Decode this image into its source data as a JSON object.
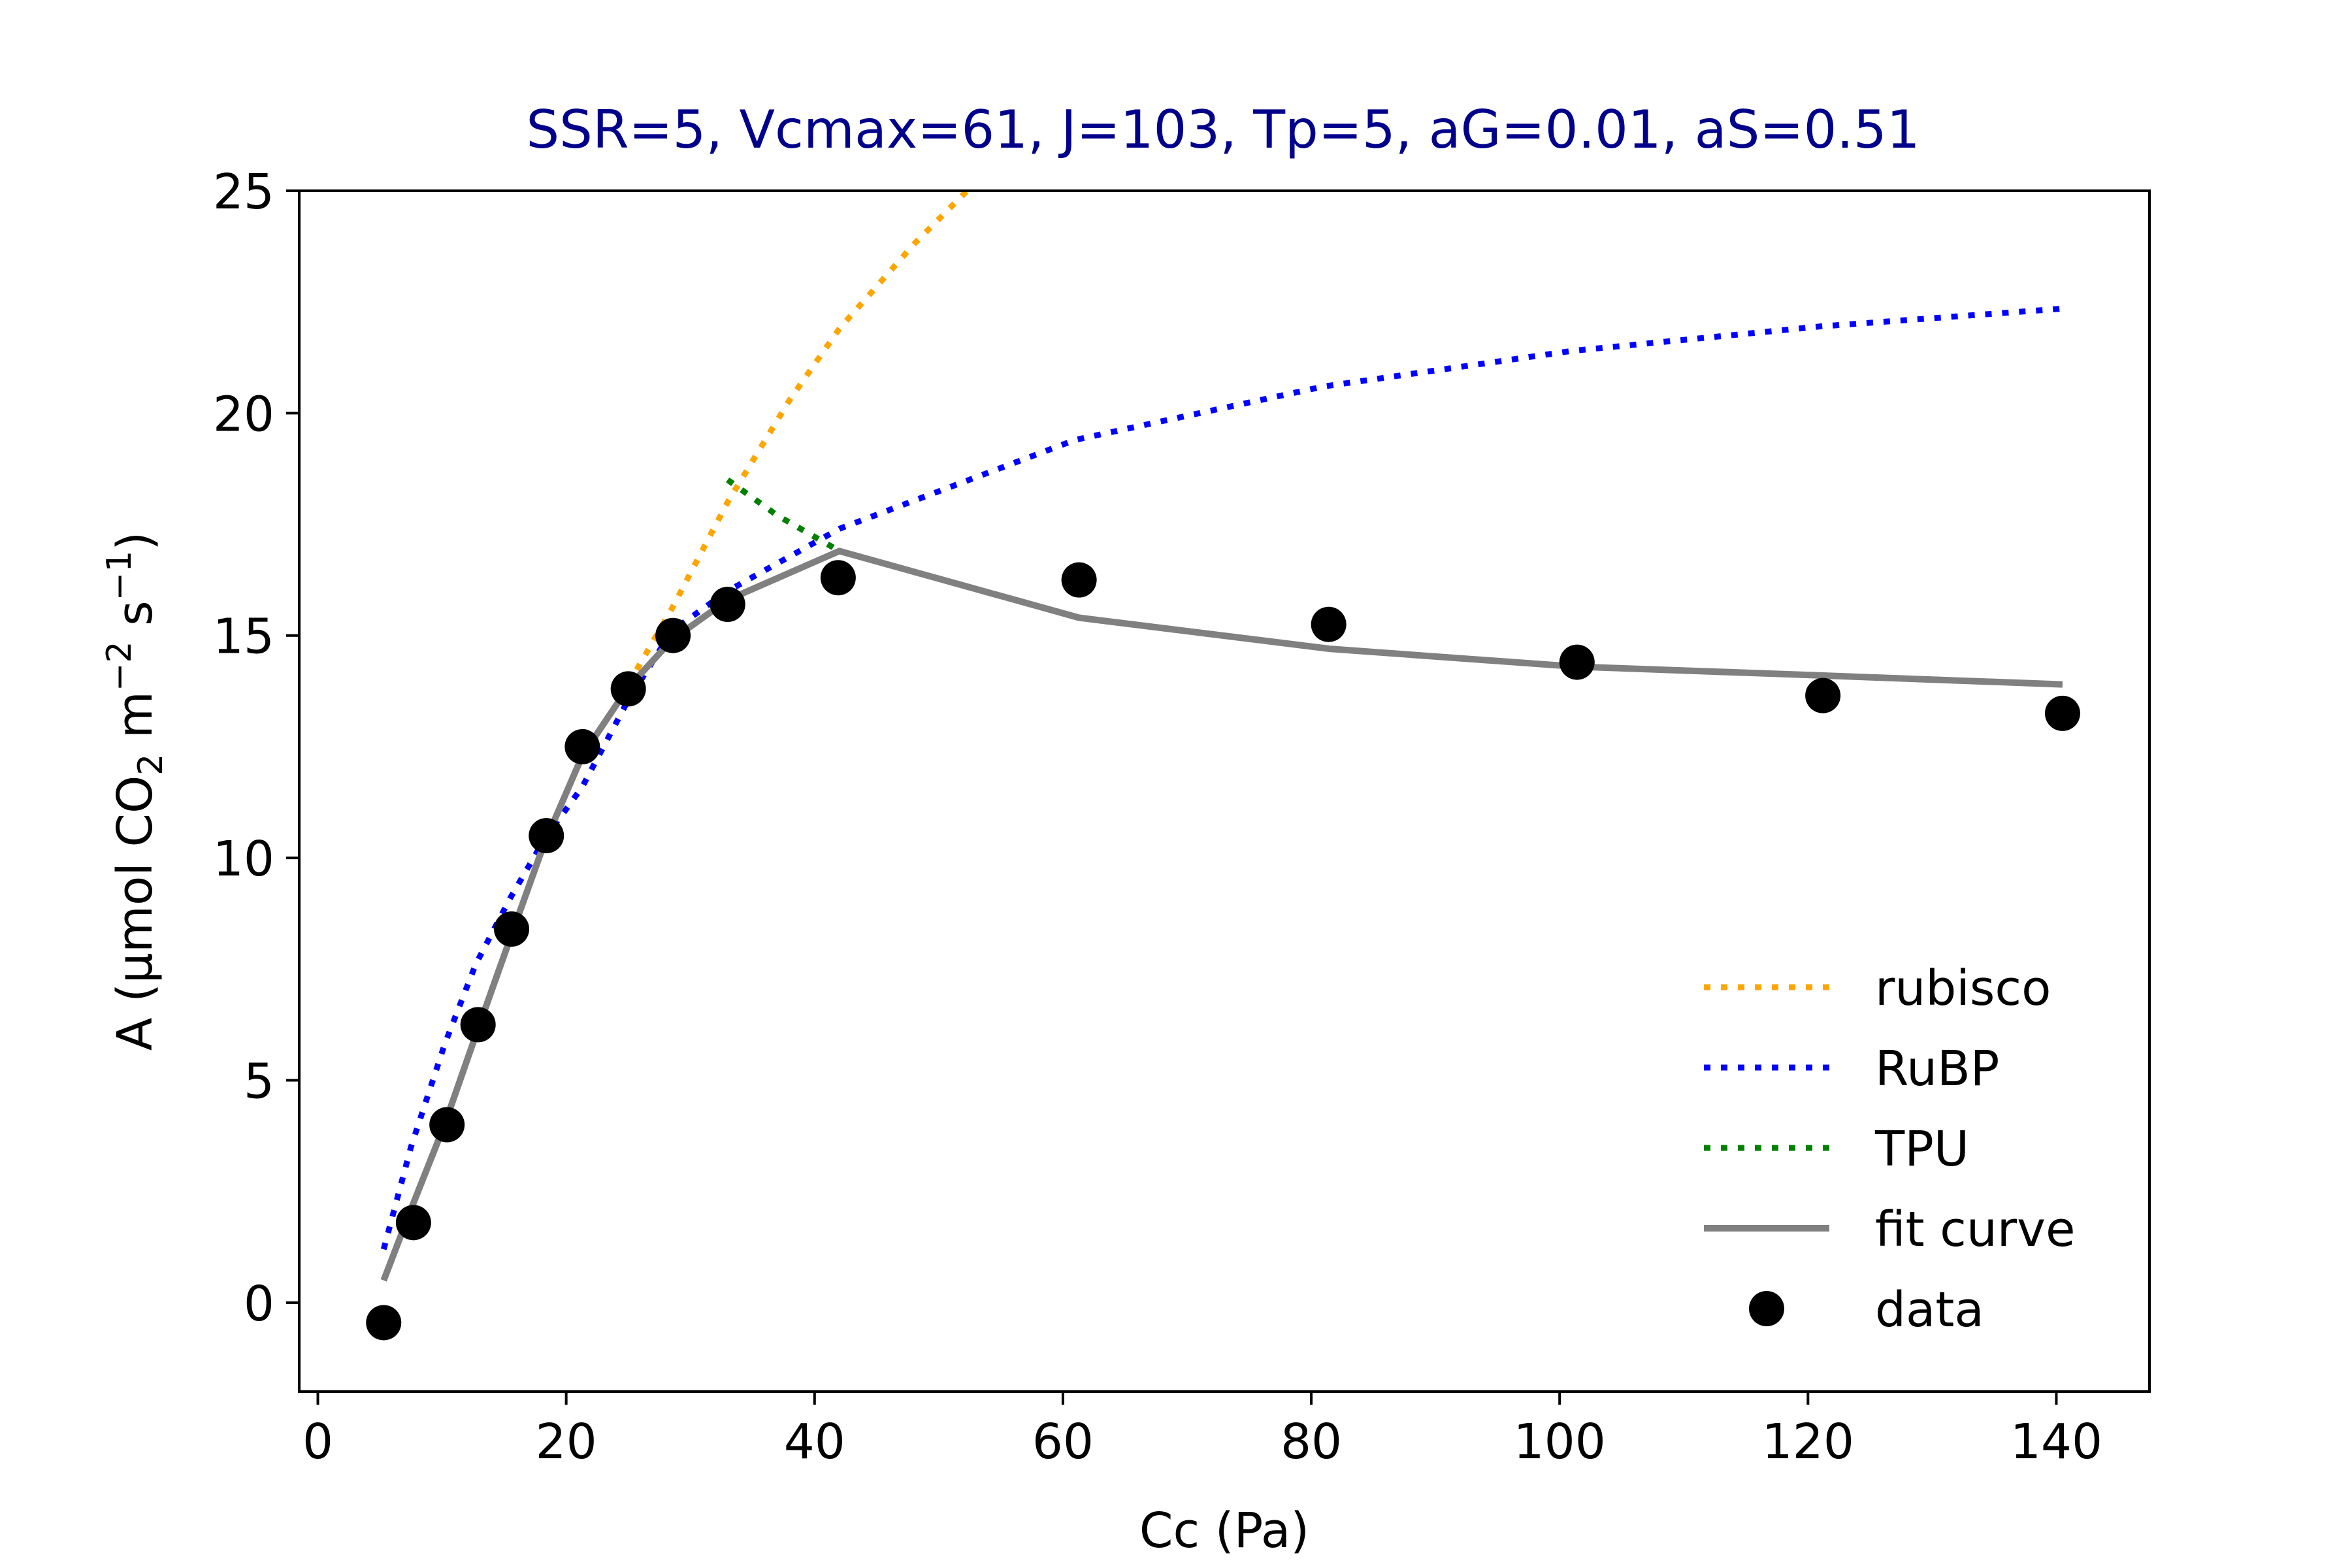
{
  "chart_data": {
    "type": "line",
    "title": "SSR=5, Vcmax=61, J=103, Tp=5, aG=0.01, aS=0.51",
    "xlabel": "Cc (Pa)",
    "ylabel": {
      "prefix": "A (μmol CO",
      "sub": "2",
      "middle": " m",
      "sup1": "−2",
      "middle2": " s",
      "sup2": "−1",
      "suffix": ")"
    },
    "xlim": [
      -1.5,
      147.5
    ],
    "ylim": [
      -2,
      25
    ],
    "xticks": [
      0,
      20,
      40,
      60,
      80,
      100,
      120,
      140
    ],
    "yticks": [
      0,
      5,
      10,
      15,
      20,
      25
    ],
    "legend_position": "lower-right",
    "grid": false,
    "series": [
      {
        "name": "rubisco",
        "style": "dotted",
        "color": "#ffa500",
        "x": [
          25.0,
          28.5,
          33.0,
          38.0,
          42.0,
          48.0,
          53.0
        ],
        "y": [
          13.9,
          15.6,
          18.0,
          20.3,
          21.9,
          23.8,
          25.2
        ]
      },
      {
        "name": "RuBP",
        "style": "dotted",
        "color": "#0000ff",
        "x": [
          5.3,
          7.5,
          10.2,
          12.7,
          15.5,
          18.2,
          21.3,
          24.9,
          28.5,
          33.0,
          42.0,
          61.0,
          81.0,
          101.0,
          121.0,
          140.5
        ],
        "y": [
          1.2,
          3.5,
          5.8,
          7.6,
          9.1,
          10.4,
          11.6,
          13.5,
          15.1,
          16.0,
          17.4,
          19.4,
          20.6,
          21.4,
          21.95,
          22.35
        ]
      },
      {
        "name": "TPU",
        "style": "dotted",
        "color": "#008000",
        "x": [
          33.0,
          37.0,
          42.0
        ],
        "y": [
          18.5,
          17.7,
          16.9
        ]
      },
      {
        "name": "fit curve",
        "style": "solid",
        "color": "#808080",
        "x": [
          5.3,
          7.5,
          10.2,
          12.7,
          15.5,
          18.2,
          21.3,
          24.9,
          28.5,
          33.0,
          42.0,
          61.3,
          81.5,
          101.3,
          121.3,
          140.5
        ],
        "y": [
          0.5,
          2.1,
          4.0,
          6.0,
          8.2,
          10.3,
          12.3,
          13.8,
          14.9,
          15.8,
          16.9,
          15.4,
          14.7,
          14.3,
          14.1,
          13.9
        ]
      },
      {
        "name": "data",
        "style": "markers",
        "color": "#000000",
        "x": [
          5.3,
          7.7,
          10.4,
          12.9,
          15.6,
          18.4,
          21.3,
          25.0,
          28.6,
          33.0,
          41.9,
          61.3,
          81.4,
          101.4,
          121.2,
          140.5
        ],
        "y": [
          -0.45,
          1.8,
          4.0,
          6.25,
          8.4,
          10.5,
          12.5,
          13.8,
          15.0,
          15.7,
          16.3,
          16.25,
          15.25,
          14.4,
          13.65,
          13.25
        ]
      }
    ]
  }
}
